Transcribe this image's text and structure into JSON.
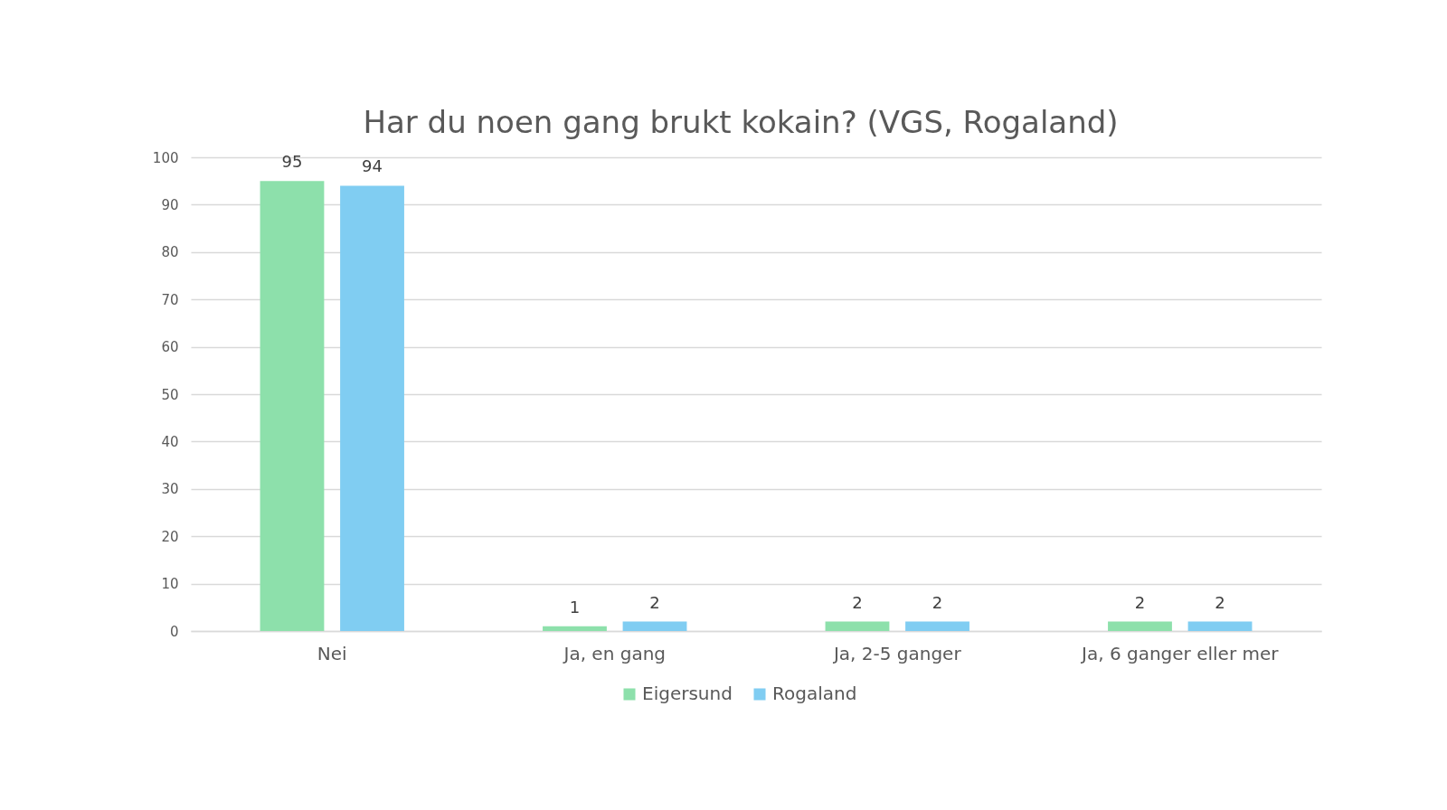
{
  "chart_data": {
    "type": "bar",
    "title": "Har du noen gang brukt kokain? (VGS, Rogaland)",
    "categories": [
      "Nei",
      "Ja, en gang",
      "Ja, 2-5 ganger",
      "Ja, 6 ganger eller mer"
    ],
    "series": [
      {
        "name": "Eigersund",
        "color": "#8de0ab",
        "values": [
          95,
          1,
          2,
          2
        ]
      },
      {
        "name": "Rogaland",
        "color": "#80cdf2",
        "values": [
          94,
          2,
          2,
          2
        ]
      }
    ],
    "ylim": [
      0,
      100
    ],
    "yticks": [
      0,
      10,
      20,
      30,
      40,
      50,
      60,
      70,
      80,
      90,
      100
    ],
    "grid": "y",
    "legend": "bottom",
    "data_labels": true
  }
}
